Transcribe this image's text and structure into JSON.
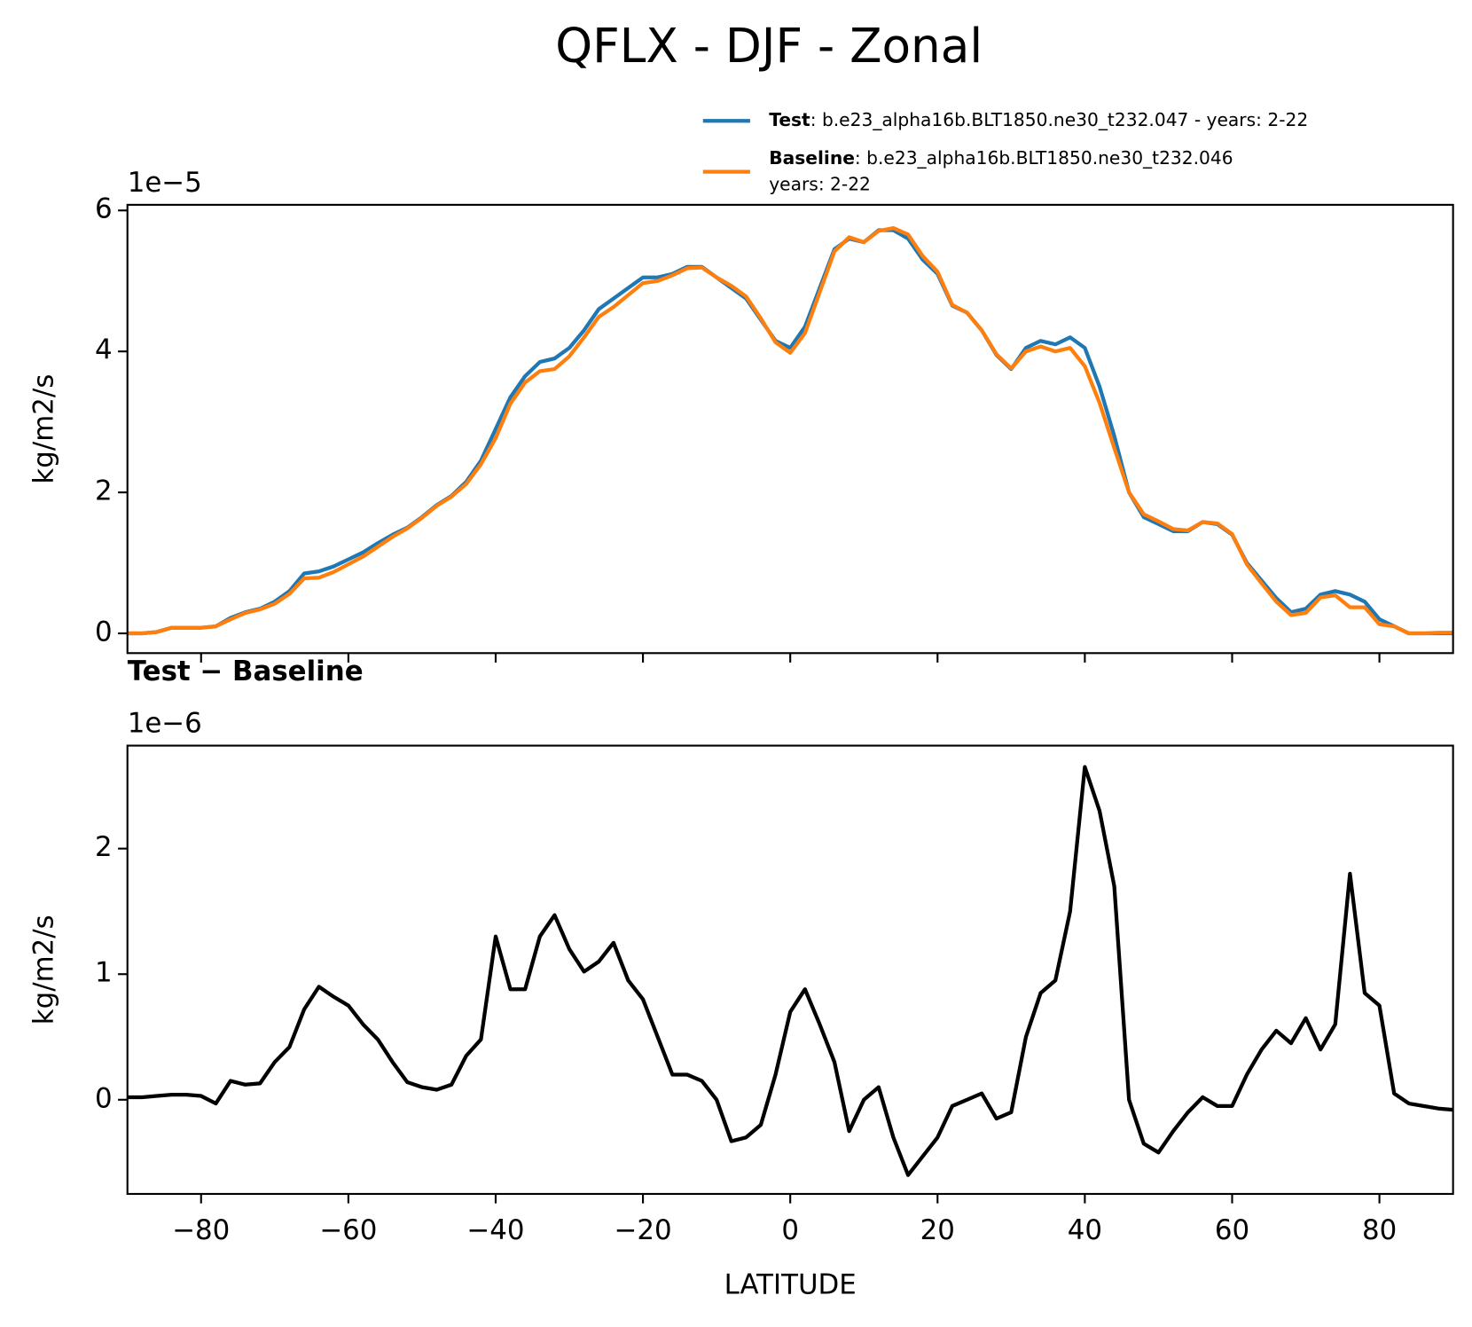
{
  "title": "QFLX - DJF - Zonal",
  "chart_data": [
    {
      "type": "line",
      "ylabel": "kg/m2/s",
      "y_offset_label": "1e−5",
      "xlim": [
        -90,
        90
      ],
      "ylim": [
        -0.28,
        6.08
      ],
      "xticks": [
        -80,
        -60,
        -40,
        -20,
        0,
        20,
        40,
        60,
        80
      ],
      "show_xtick_labels": false,
      "yticks": [
        0,
        2,
        4,
        6
      ],
      "legend": "upper right",
      "x": [
        -90,
        -88,
        -86,
        -84,
        -82,
        -80,
        -78,
        -76,
        -74,
        -72,
        -70,
        -68,
        -66,
        -64,
        -62,
        -60,
        -58,
        -56,
        -54,
        -52,
        -50,
        -48,
        -46,
        -44,
        -42,
        -40,
        -38,
        -36,
        -34,
        -32,
        -30,
        -28,
        -26,
        -24,
        -22,
        -20,
        -18,
        -16,
        -14,
        -12,
        -10,
        -8,
        -6,
        -4,
        -2,
        0,
        2,
        4,
        6,
        8,
        10,
        12,
        14,
        16,
        18,
        20,
        22,
        24,
        26,
        28,
        30,
        32,
        34,
        36,
        38,
        40,
        42,
        44,
        46,
        48,
        50,
        52,
        54,
        56,
        58,
        60,
        62,
        64,
        66,
        68,
        70,
        72,
        74,
        76,
        78,
        80,
        82,
        84,
        86,
        88,
        90
      ],
      "series": [
        {
          "name": "Test",
          "label": [
            ": b.e23_alpha16b.BLT1850.ne30_t232.047 - years: 2-22"
          ],
          "color": "#1f77b4",
          "values": [
            0.0,
            0.0,
            0.02,
            0.08,
            0.08,
            0.08,
            0.1,
            0.22,
            0.3,
            0.35,
            0.45,
            0.6,
            0.85,
            0.88,
            0.95,
            1.05,
            1.15,
            1.28,
            1.4,
            1.5,
            1.65,
            1.82,
            1.95,
            2.15,
            2.45,
            2.9,
            3.35,
            3.65,
            3.85,
            3.9,
            4.05,
            4.3,
            4.6,
            4.75,
            4.9,
            5.05,
            5.05,
            5.1,
            5.2,
            5.2,
            5.05,
            4.9,
            4.75,
            4.45,
            4.15,
            4.05,
            4.35,
            4.9,
            5.45,
            5.6,
            5.55,
            5.72,
            5.72,
            5.6,
            5.3,
            5.1,
            4.65,
            4.55,
            4.3,
            3.95,
            3.75,
            4.05,
            4.15,
            4.1,
            4.2,
            4.05,
            3.5,
            2.8,
            2.0,
            1.65,
            1.55,
            1.45,
            1.45,
            1.58,
            1.55,
            1.4,
            1.0,
            0.75,
            0.5,
            0.3,
            0.35,
            0.55,
            0.6,
            0.55,
            0.45,
            0.2,
            0.1,
            0.0,
            0.0,
            0.0,
            0.0
          ]
        },
        {
          "name": "Baseline",
          "label": [
            ": b.e23_alpha16b.BLT1850.ne30_t232.046",
            "years: 2-22"
          ],
          "color": "#ff7f0e",
          "values": [
            0.0,
            0.0,
            0.02,
            0.08,
            0.08,
            0.08,
            0.1,
            0.2,
            0.29,
            0.34,
            0.42,
            0.56,
            0.78,
            0.79,
            0.87,
            0.98,
            1.09,
            1.23,
            1.37,
            1.49,
            1.64,
            1.81,
            1.94,
            2.12,
            2.4,
            2.77,
            3.26,
            3.56,
            3.72,
            3.75,
            3.93,
            4.2,
            4.49,
            4.63,
            4.8,
            4.97,
            5.0,
            5.08,
            5.18,
            5.19,
            5.05,
            4.93,
            4.78,
            4.47,
            4.13,
            3.98,
            4.26,
            4.84,
            5.42,
            5.62,
            5.55,
            5.71,
            5.75,
            5.66,
            5.35,
            5.13,
            4.66,
            4.55,
            4.3,
            3.96,
            3.76,
            4.0,
            4.07,
            4.0,
            4.05,
            3.79,
            3.27,
            2.63,
            2.0,
            1.69,
            1.59,
            1.48,
            1.46,
            1.58,
            1.56,
            1.41,
            0.98,
            0.71,
            0.45,
            0.26,
            0.29,
            0.51,
            0.54,
            0.37,
            0.37,
            0.13,
            0.1,
            0.0,
            0.0,
            0.01,
            0.01
          ]
        }
      ]
    },
    {
      "type": "line",
      "title": "Test − Baseline",
      "ylabel": "kg/m2/s",
      "xlabel": "LATITUDE",
      "y_offset_label": "1e−6",
      "xlim": [
        -90,
        90
      ],
      "ylim": [
        -0.75,
        2.82
      ],
      "xticks": [
        {
          "value": -80,
          "label": "−80"
        },
        {
          "value": -60,
          "label": "−60"
        },
        {
          "value": -40,
          "label": "−40"
        },
        {
          "value": -20,
          "label": "−20"
        },
        0,
        20,
        40,
        60,
        80
      ],
      "yticks": [
        0,
        1,
        2
      ],
      "color": "#000000",
      "x": [
        -90,
        -88,
        -86,
        -84,
        -82,
        -80,
        -78,
        -76,
        -74,
        -72,
        -70,
        -68,
        -66,
        -64,
        -62,
        -60,
        -58,
        -56,
        -54,
        -52,
        -50,
        -48,
        -46,
        -44,
        -42,
        -40,
        -38,
        -36,
        -34,
        -32,
        -30,
        -28,
        -26,
        -24,
        -22,
        -20,
        -18,
        -16,
        -14,
        -12,
        -10,
        -8,
        -6,
        -4,
        -2,
        0,
        2,
        4,
        6,
        8,
        10,
        12,
        14,
        16,
        18,
        20,
        22,
        24,
        26,
        28,
        30,
        32,
        34,
        36,
        38,
        40,
        42,
        44,
        46,
        48,
        50,
        52,
        54,
        56,
        58,
        60,
        62,
        64,
        66,
        68,
        70,
        72,
        74,
        76,
        78,
        80,
        82,
        84,
        86,
        88,
        90
      ],
      "values": [
        0.02,
        0.02,
        0.03,
        0.04,
        0.04,
        0.03,
        -0.03,
        0.15,
        0.12,
        0.13,
        0.3,
        0.42,
        0.72,
        0.9,
        0.82,
        0.75,
        0.6,
        0.48,
        0.3,
        0.14,
        0.1,
        0.08,
        0.12,
        0.35,
        0.48,
        1.3,
        0.88,
        0.88,
        1.3,
        1.47,
        1.2,
        1.02,
        1.1,
        1.25,
        0.95,
        0.8,
        0.5,
        0.2,
        0.2,
        0.15,
        0.0,
        -0.33,
        -0.3,
        -0.2,
        0.2,
        0.7,
        0.88,
        0.6,
        0.3,
        -0.25,
        0.0,
        0.1,
        -0.3,
        -0.6,
        -0.45,
        -0.3,
        -0.05,
        0.0,
        0.05,
        -0.15,
        -0.1,
        0.5,
        0.85,
        0.95,
        1.5,
        2.65,
        2.3,
        1.7,
        0.0,
        -0.35,
        -0.42,
        -0.25,
        -0.1,
        0.02,
        -0.05,
        -0.05,
        0.2,
        0.4,
        0.55,
        0.45,
        0.65,
        0.4,
        0.6,
        1.8,
        0.85,
        0.75,
        0.05,
        -0.03,
        -0.05,
        -0.07,
        -0.08
      ]
    }
  ]
}
